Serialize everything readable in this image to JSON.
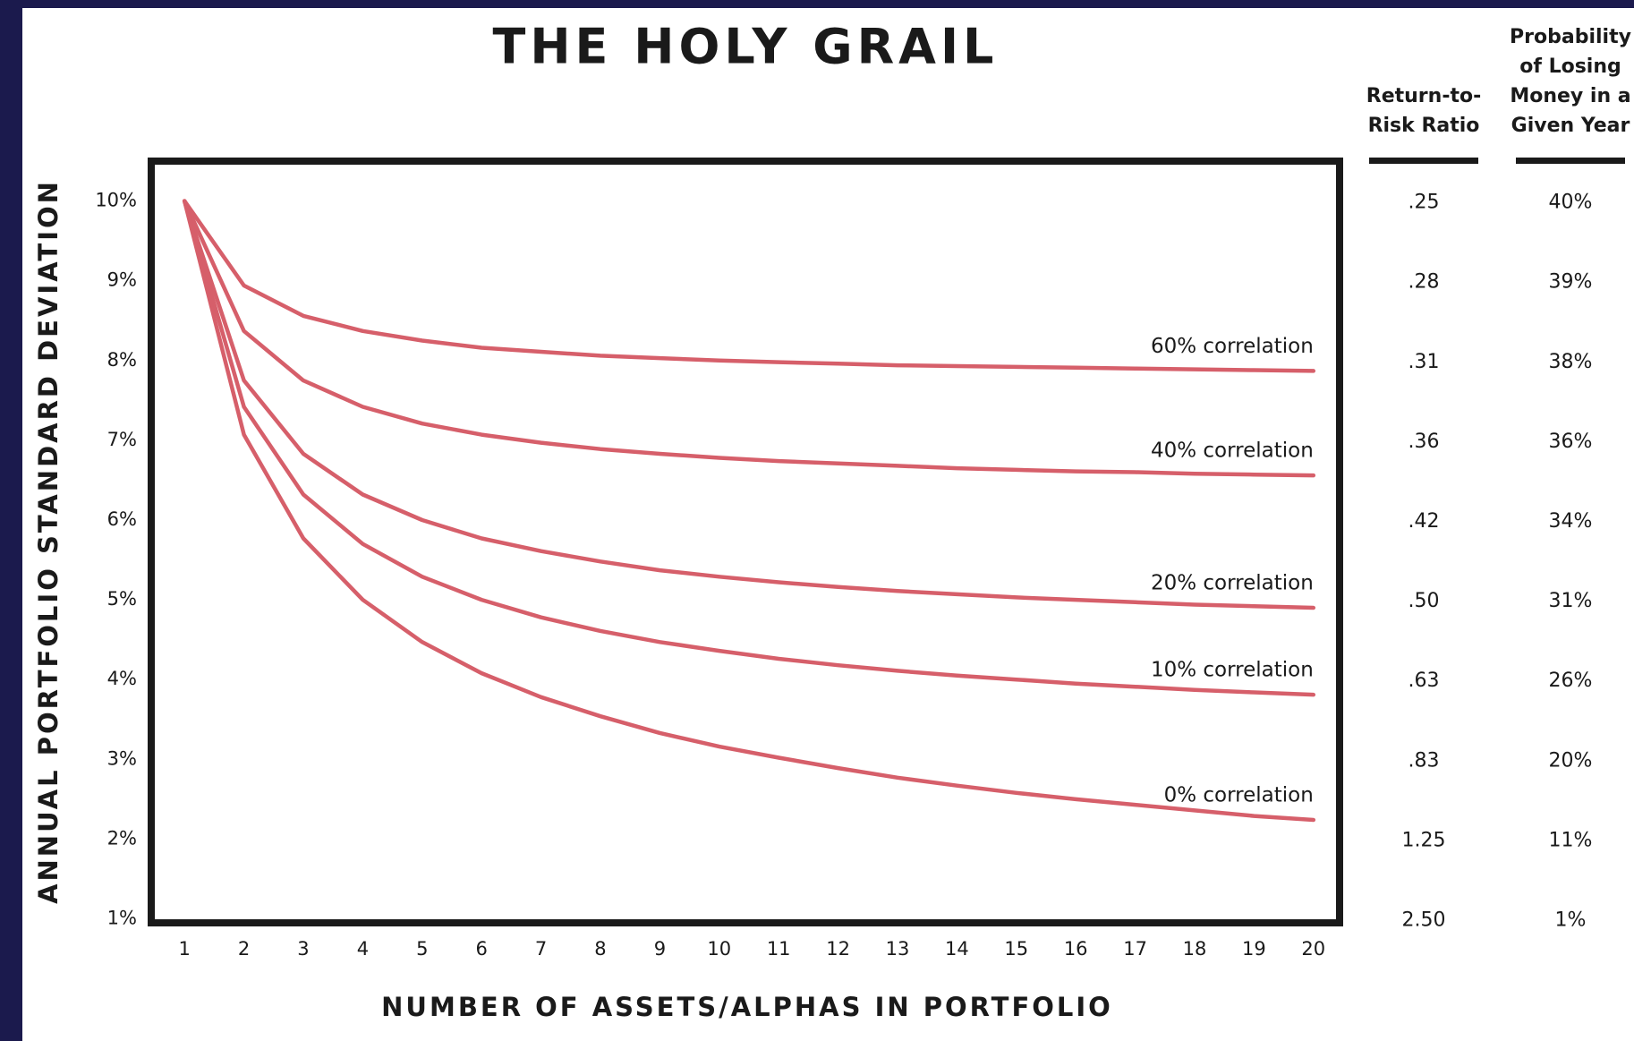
{
  "chart_data": {
    "type": "line",
    "title": "THE HOLY GRAIL",
    "y_label": "ANNUAL PORTFOLIO STANDARD DEVIATION",
    "x_label": "NUMBER OF ASSETS/ALPHAS IN PORTFOLIO",
    "x": [
      1,
      2,
      3,
      4,
      5,
      6,
      7,
      8,
      9,
      10,
      11,
      12,
      13,
      14,
      15,
      16,
      17,
      18,
      19,
      20
    ],
    "xlim": [
      0.44,
      20.44
    ],
    "xticks": [
      1,
      2,
      3,
      4,
      5,
      6,
      7,
      8,
      9,
      10,
      11,
      12,
      13,
      14,
      15,
      16,
      17,
      18,
      19,
      20
    ],
    "ylim": [
      0.95,
      10.5
    ],
    "yticks": [
      {
        "value": 1,
        "label": "1%"
      },
      {
        "value": 2,
        "label": "2%"
      },
      {
        "value": 3,
        "label": "3%"
      },
      {
        "value": 4,
        "label": "4%"
      },
      {
        "value": 5,
        "label": "5%"
      },
      {
        "value": 6,
        "label": "6%"
      },
      {
        "value": 7,
        "label": "7%"
      },
      {
        "value": 8,
        "label": "8%"
      },
      {
        "value": 9,
        "label": "9%"
      },
      {
        "value": 10,
        "label": "10%"
      }
    ],
    "series": [
      {
        "name": "60% correlation",
        "color": "#d65f6a",
        "values": [
          10,
          8.94,
          8.56,
          8.37,
          8.25,
          8.16,
          8.11,
          8.06,
          8.03,
          8.0,
          7.98,
          7.96,
          7.94,
          7.93,
          7.92,
          7.91,
          7.9,
          7.89,
          7.88,
          7.87
        ]
      },
      {
        "name": "40% correlation",
        "color": "#d65f6a",
        "values": [
          10,
          8.37,
          7.75,
          7.42,
          7.21,
          7.07,
          6.97,
          6.89,
          6.83,
          6.78,
          6.74,
          6.71,
          6.68,
          6.65,
          6.63,
          6.61,
          6.6,
          6.58,
          6.57,
          6.56
        ]
      },
      {
        "name": "20% correlation",
        "color": "#d65f6a",
        "values": [
          10,
          7.75,
          6.83,
          6.32,
          6.0,
          5.77,
          5.61,
          5.48,
          5.37,
          5.29,
          5.22,
          5.16,
          5.11,
          5.07,
          5.03,
          5.0,
          4.97,
          4.94,
          4.92,
          4.9
        ]
      },
      {
        "name": "10% correlation",
        "color": "#d65f6a",
        "values": [
          10,
          7.42,
          6.32,
          5.7,
          5.29,
          5.0,
          4.78,
          4.61,
          4.47,
          4.36,
          4.26,
          4.18,
          4.11,
          4.05,
          4.0,
          3.95,
          3.91,
          3.87,
          3.84,
          3.81
        ]
      },
      {
        "name": "0% correlation",
        "color": "#d65f6a",
        "values": [
          10,
          7.07,
          5.77,
          5.0,
          4.47,
          4.08,
          3.78,
          3.54,
          3.33,
          3.16,
          3.02,
          2.89,
          2.77,
          2.67,
          2.58,
          2.5,
          2.43,
          2.36,
          2.29,
          2.24
        ]
      }
    ]
  },
  "table": {
    "columns": [
      {
        "header": [
          "Return-to-",
          "Risk Ratio"
        ],
        "values": [
          ".25",
          ".28",
          ".31",
          ".36",
          ".42",
          ".50",
          ".63",
          ".83",
          "1.25",
          "2.50"
        ]
      },
      {
        "header": [
          "Probability",
          "of Losing",
          "Money in a",
          "Given Year"
        ],
        "values": [
          "40%",
          "39%",
          "38%",
          "36%",
          "34%",
          "31%",
          "26%",
          "20%",
          "11%",
          "1%"
        ]
      }
    ]
  }
}
